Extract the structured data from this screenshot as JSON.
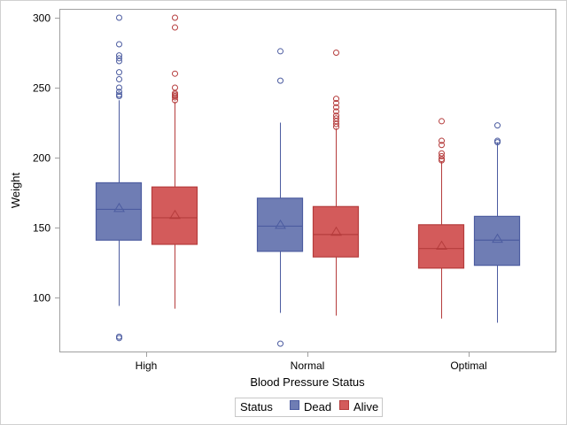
{
  "chart_data": {
    "type": "box",
    "title": "",
    "xlabel": "Blood Pressure Status",
    "ylabel": "Weight",
    "ylim": [
      60,
      305
    ],
    "yticks": [
      100,
      150,
      200,
      250,
      300
    ],
    "categories": [
      "High",
      "Normal",
      "Optimal"
    ],
    "grid": false,
    "legend": {
      "title": "Status",
      "position": "bottom",
      "entries": [
        "Dead",
        "Alive"
      ]
    },
    "colors": {
      "Dead": "#6f7db4",
      "Alive": "#d35b5b",
      "DeadLine": "#4c5ca0",
      "AliveLine": "#b53c3c"
    },
    "boxes": [
      {
        "category": "High",
        "group": "Dead",
        "q1": 141,
        "median": 163,
        "q3": 182,
        "mean": 164,
        "whisker_low": 94,
        "whisker_high": 241,
        "outliers": [
          300,
          281,
          273,
          271,
          269,
          261,
          256,
          250,
          247,
          245,
          244,
          72,
          71
        ]
      },
      {
        "category": "High",
        "group": "Alive",
        "q1": 138,
        "median": 157,
        "q3": 179,
        "mean": 159,
        "whisker_low": 92,
        "whisker_high": 240,
        "outliers": [
          300,
          293,
          260,
          250,
          246,
          245,
          244,
          243,
          241
        ]
      },
      {
        "category": "Normal",
        "group": "Dead",
        "q1": 133,
        "median": 151,
        "q3": 171,
        "mean": 152,
        "whisker_low": 89,
        "whisker_high": 225,
        "outliers": [
          276,
          255,
          67
        ]
      },
      {
        "category": "Normal",
        "group": "Alive",
        "q1": 129,
        "median": 145,
        "q3": 165,
        "mean": 147,
        "whisker_low": 87,
        "whisker_high": 221,
        "outliers": [
          275,
          242,
          239,
          236,
          233,
          230,
          228,
          226,
          224,
          222
        ]
      },
      {
        "category": "Optimal",
        "group": "Alive",
        "q1": 121,
        "median": 135,
        "q3": 152,
        "mean": 137,
        "whisker_low": 85,
        "whisker_high": 197,
        "outliers": [
          226,
          212,
          209,
          203,
          201,
          199,
          198
        ]
      },
      {
        "category": "Optimal",
        "group": "Dead",
        "q1": 123,
        "median": 141,
        "q3": 158,
        "mean": 142,
        "whisker_low": 82,
        "whisker_high": 211,
        "outliers": [
          223,
          212,
          211
        ]
      }
    ]
  }
}
